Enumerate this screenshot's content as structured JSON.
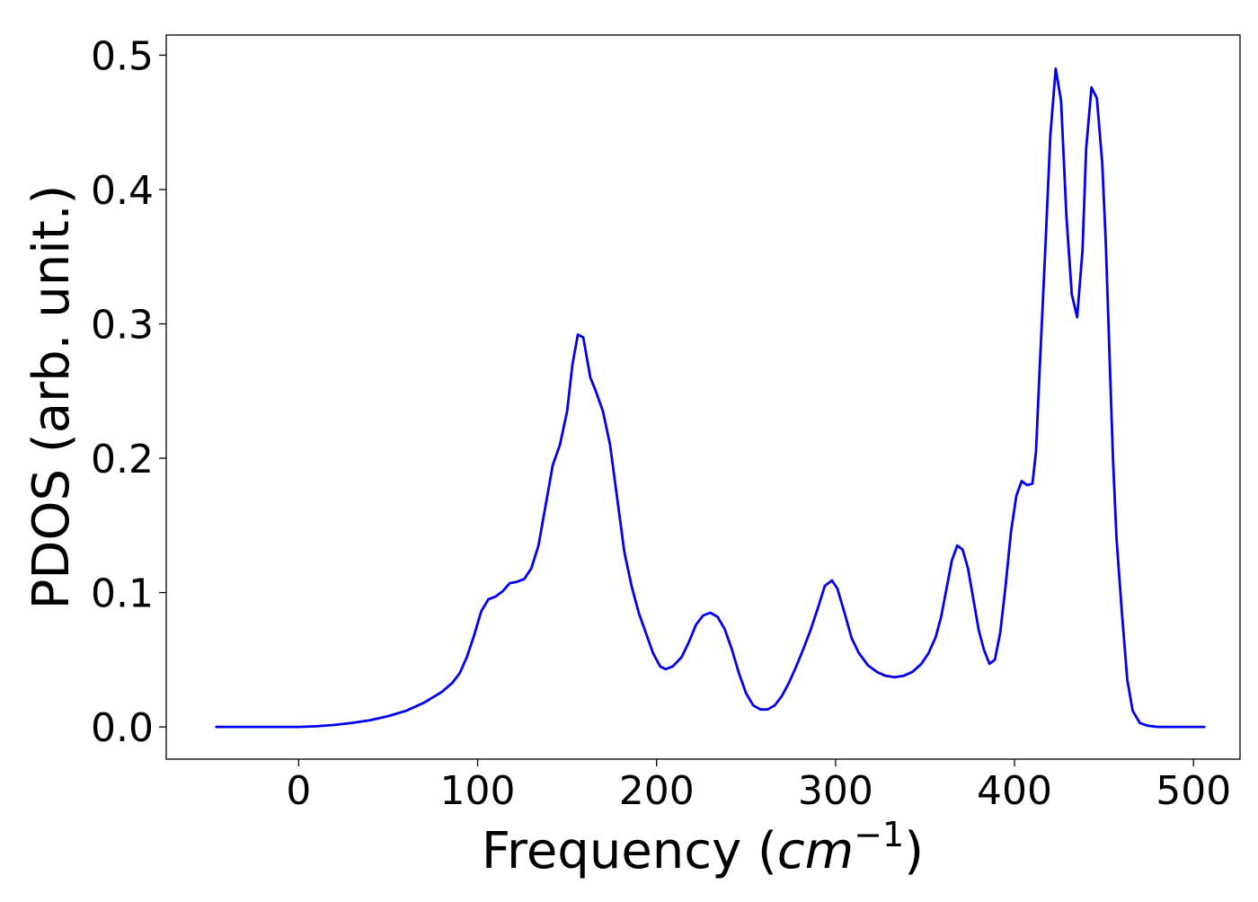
{
  "chart_data": {
    "type": "line",
    "title": "",
    "xlabel": "Frequency (cm⁻¹)",
    "xlabel_parts": {
      "prefix": "Frequency (",
      "var": "cm",
      "exp": "−1",
      "suffix": ")"
    },
    "ylabel": "PDOS (arb. unit.)",
    "xlim": [
      -74,
      526
    ],
    "ylim": [
      -0.024,
      0.515
    ],
    "xticks": [
      0,
      100,
      200,
      300,
      400,
      500
    ],
    "xtick_labels": [
      "0",
      "100",
      "200",
      "300",
      "400",
      "500"
    ],
    "yticks": [
      0.0,
      0.1,
      0.2,
      0.3,
      0.4,
      0.5
    ],
    "ytick_labels": [
      "0.0",
      "0.1",
      "0.2",
      "0.3",
      "0.4",
      "0.5"
    ],
    "grid": false,
    "legend": "none",
    "series": [
      {
        "color": "#0000ee",
        "points": [
          [
            -46,
            0.0
          ],
          [
            -20,
            0.0
          ],
          [
            0,
            0.0
          ],
          [
            10,
            0.0005
          ],
          [
            20,
            0.0015
          ],
          [
            30,
            0.003
          ],
          [
            40,
            0.005
          ],
          [
            50,
            0.008
          ],
          [
            60,
            0.012
          ],
          [
            70,
            0.018
          ],
          [
            80,
            0.026
          ],
          [
            86,
            0.033
          ],
          [
            90,
            0.04
          ],
          [
            94,
            0.052
          ],
          [
            98,
            0.068
          ],
          [
            102,
            0.086
          ],
          [
            106,
            0.095
          ],
          [
            110,
            0.097
          ],
          [
            114,
            0.101
          ],
          [
            118,
            0.107
          ],
          [
            122,
            0.108
          ],
          [
            126,
            0.11
          ],
          [
            130,
            0.118
          ],
          [
            134,
            0.135
          ],
          [
            138,
            0.165
          ],
          [
            142,
            0.195
          ],
          [
            146,
            0.21
          ],
          [
            150,
            0.235
          ],
          [
            153,
            0.27
          ],
          [
            156,
            0.292
          ],
          [
            159,
            0.29
          ],
          [
            163,
            0.26
          ],
          [
            166,
            0.25
          ],
          [
            170,
            0.235
          ],
          [
            174,
            0.21
          ],
          [
            178,
            0.17
          ],
          [
            182,
            0.13
          ],
          [
            186,
            0.105
          ],
          [
            190,
            0.085
          ],
          [
            194,
            0.07
          ],
          [
            198,
            0.055
          ],
          [
            202,
            0.045
          ],
          [
            205,
            0.043
          ],
          [
            209,
            0.045
          ],
          [
            214,
            0.052
          ],
          [
            218,
            0.063
          ],
          [
            222,
            0.076
          ],
          [
            226,
            0.083
          ],
          [
            230,
            0.085
          ],
          [
            234,
            0.082
          ],
          [
            238,
            0.073
          ],
          [
            242,
            0.058
          ],
          [
            246,
            0.04
          ],
          [
            250,
            0.025
          ],
          [
            254,
            0.016
          ],
          [
            258,
            0.013
          ],
          [
            262,
            0.013
          ],
          [
            266,
            0.016
          ],
          [
            270,
            0.023
          ],
          [
            274,
            0.033
          ],
          [
            278,
            0.045
          ],
          [
            282,
            0.058
          ],
          [
            286,
            0.072
          ],
          [
            290,
            0.088
          ],
          [
            294,
            0.105
          ],
          [
            298,
            0.109
          ],
          [
            301,
            0.103
          ],
          [
            305,
            0.085
          ],
          [
            309,
            0.066
          ],
          [
            313,
            0.055
          ],
          [
            318,
            0.046
          ],
          [
            323,
            0.041
          ],
          [
            328,
            0.038
          ],
          [
            333,
            0.037
          ],
          [
            338,
            0.038
          ],
          [
            343,
            0.041
          ],
          [
            348,
            0.047
          ],
          [
            352,
            0.055
          ],
          [
            356,
            0.067
          ],
          [
            359,
            0.082
          ],
          [
            362,
            0.103
          ],
          [
            365,
            0.124
          ],
          [
            368,
            0.135
          ],
          [
            371,
            0.132
          ],
          [
            374,
            0.118
          ],
          [
            377,
            0.095
          ],
          [
            380,
            0.072
          ],
          [
            383,
            0.057
          ],
          [
            386,
            0.047
          ],
          [
            389,
            0.05
          ],
          [
            392,
            0.07
          ],
          [
            395,
            0.105
          ],
          [
            398,
            0.145
          ],
          [
            401,
            0.172
          ],
          [
            404,
            0.183
          ],
          [
            407,
            0.18
          ],
          [
            410,
            0.181
          ],
          [
            412,
            0.205
          ],
          [
            414,
            0.265
          ],
          [
            417,
            0.35
          ],
          [
            420,
            0.44
          ],
          [
            423,
            0.49
          ],
          [
            426,
            0.466
          ],
          [
            429,
            0.38
          ],
          [
            432,
            0.322
          ],
          [
            435,
            0.305
          ],
          [
            438,
            0.355
          ],
          [
            440,
            0.43
          ],
          [
            443,
            0.476
          ],
          [
            446,
            0.468
          ],
          [
            449,
            0.42
          ],
          [
            451,
            0.36
          ],
          [
            453,
            0.28
          ],
          [
            455,
            0.2
          ],
          [
            457,
            0.14
          ],
          [
            460,
            0.085
          ],
          [
            463,
            0.035
          ],
          [
            466,
            0.012
          ],
          [
            470,
            0.003
          ],
          [
            474,
            0.001
          ],
          [
            480,
            0.0
          ],
          [
            500,
            0.0
          ],
          [
            506,
            0.0
          ]
        ]
      }
    ]
  }
}
